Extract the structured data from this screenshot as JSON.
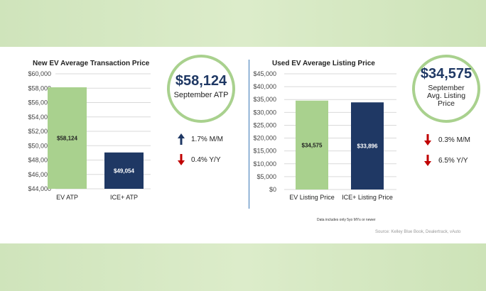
{
  "colors": {
    "ev": "#a9d18e",
    "ice": "#1f3864",
    "grid": "#d9d9d9",
    "ring": "#a9d18e",
    "up": "#1f3864",
    "down": "#c00000"
  },
  "chart_data": [
    {
      "type": "bar",
      "title": "New EV Average Transaction Price",
      "categories": [
        "EV ATP",
        "ICE+ ATP"
      ],
      "values": [
        58124,
        49054
      ],
      "data_labels": [
        "$58,124",
        "$49,054"
      ],
      "bar_colors": [
        "#a9d18e",
        "#1f3864"
      ],
      "ylim": [
        44000,
        60000
      ],
      "yticks": [
        44000,
        46000,
        48000,
        50000,
        52000,
        54000,
        56000,
        58000,
        60000
      ],
      "ytick_labels": [
        "$44,000",
        "$46,000",
        "$48,000",
        "$50,000",
        "$52,000",
        "$54,000",
        "$56,000",
        "$58,000",
        "$60,000"
      ],
      "grid": true
    },
    {
      "type": "bar",
      "title": "Used EV Average Listing Price",
      "categories": [
        "EV Listing Price",
        "ICE+ Listing Price"
      ],
      "values": [
        34575,
        33896
      ],
      "data_labels": [
        "$34,575",
        "$33,896"
      ],
      "bar_colors": [
        "#a9d18e",
        "#1f3864"
      ],
      "ylim": [
        0,
        45000
      ],
      "yticks": [
        0,
        5000,
        10000,
        15000,
        20000,
        25000,
        30000,
        35000,
        40000,
        45000
      ],
      "ytick_labels": [
        "$0",
        "$5,000",
        "$10,000",
        "$15,000",
        "$20,000",
        "$25,000",
        "$30,000",
        "$35,000",
        "$40,000",
        "$45,000"
      ],
      "grid": true
    }
  ],
  "callouts": {
    "new": {
      "value": "$58,124",
      "label": "September ATP",
      "stats": [
        {
          "direction": "up",
          "text": "1.7% M/M"
        },
        {
          "direction": "down",
          "text": "0.4% Y/Y"
        }
      ]
    },
    "used": {
      "value": "$34,575",
      "label_lines": [
        "September",
        "Avg. Listing",
        "Price"
      ],
      "stats": [
        {
          "direction": "down",
          "text": "0.3% M/M"
        },
        {
          "direction": "down",
          "text": "6.5% Y/Y"
        }
      ]
    }
  },
  "footnote": "Data includes only 5yo MYs or newer",
  "source": "Source: Kelley Blue Book, Dealertrack, vAuto"
}
